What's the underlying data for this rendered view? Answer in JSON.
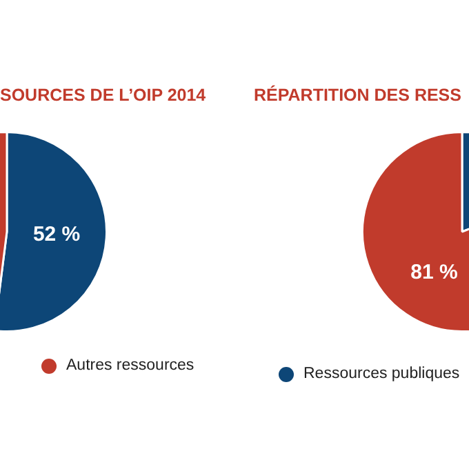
{
  "chart_data": [
    {
      "type": "pie",
      "title": "SOURCES DE L’OIP 2014",
      "categories": [
        null,
        "Autres ressources"
      ],
      "values": [
        52,
        48
      ],
      "colors": [
        "#0d4677",
        "#c13b2c"
      ],
      "value_labels": [
        "52 %",
        null
      ],
      "legend": "bottom"
    },
    {
      "type": "pie",
      "title": "RÉPARTITION DES RESS",
      "categories": [
        "Ressources publiques",
        null
      ],
      "values": [
        19,
        81
      ],
      "colors": [
        "#0d4677",
        "#c13b2c"
      ],
      "value_labels": [
        null,
        "81 %"
      ],
      "legend": "bottom"
    }
  ]
}
